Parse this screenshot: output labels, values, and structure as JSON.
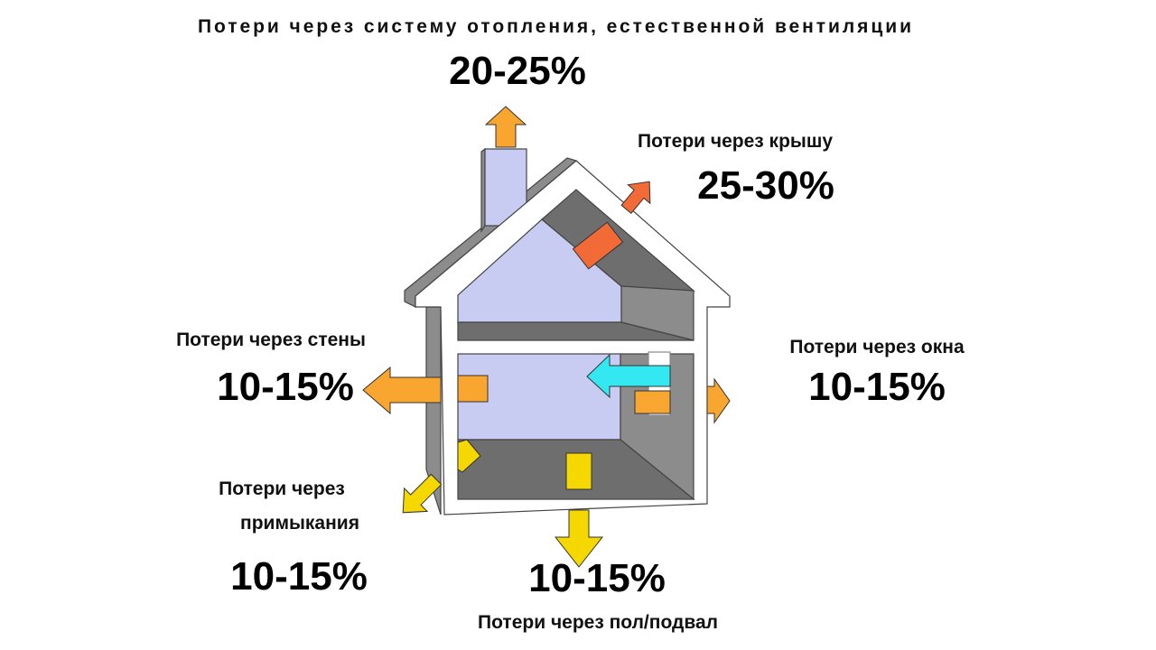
{
  "labels": {
    "ventilation": {
      "text": "Потери через систему отопления, естественной вентиляции",
      "value": "20-25%"
    },
    "roof": {
      "text": "Потери через крышу",
      "value": "25-30%"
    },
    "walls": {
      "text": "Потери через стены",
      "value": "10-15%"
    },
    "windows": {
      "text": "Потери через окна",
      "value": "10-15%"
    },
    "junctions": {
      "text_line1": "Потери через",
      "text_line2": "примыкания",
      "value": "10-15%"
    },
    "floor": {
      "text": "Потери через пол/подвал",
      "value": "10-15%"
    }
  },
  "colors": {
    "orange_arrow": "#F9A630",
    "red_arrow": "#F26A35",
    "yellow_arrow": "#F5D800",
    "cyan_arrow": "#33E8F0",
    "interior": "#C9CCF2",
    "dark_gray": "#6E6E6E",
    "mid_gray": "#8C8C8C"
  }
}
